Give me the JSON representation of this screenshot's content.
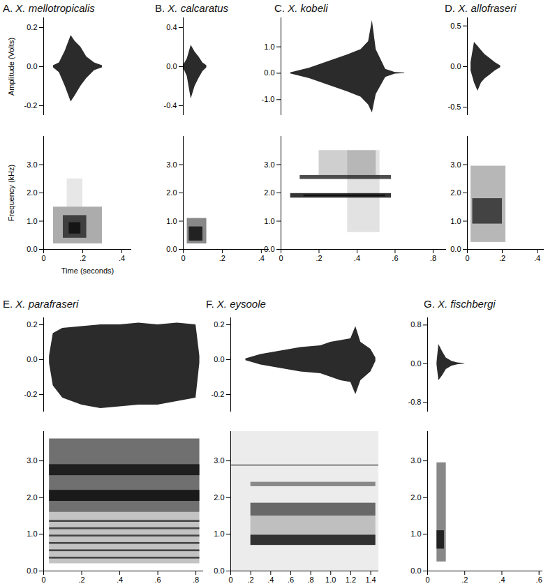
{
  "chart_data": [
    {
      "type": "area",
      "title": "A. X. mellotropicalis",
      "ylabel": "Amplitude (Volts)",
      "tick_labels": "y",
      "color": "#2b2b2b",
      "xlim": [
        0,
        0.45
      ],
      "ylim": [
        -0.25,
        0.25
      ],
      "yticks": [
        0.2,
        {
          "value": 0,
          "label": "0.0"
        },
        -0.2
      ],
      "x": [
        0.05,
        0.08,
        0.11,
        0.14,
        0.16,
        0.19,
        0.22,
        0.26,
        0.3
      ],
      "upper": [
        0.005,
        0.02,
        0.08,
        0.16,
        0.13,
        0.1,
        0.05,
        0.02,
        0.005
      ],
      "lower": [
        -0.005,
        -0.03,
        -0.1,
        -0.18,
        -0.15,
        -0.1,
        -0.06,
        -0.02,
        -0.005
      ]
    },
    {
      "type": "spectrogram",
      "ylabel": "Frequency (kHz)",
      "xlabel": "Time (seconds)",
      "color": "#111111",
      "xlim": [
        0,
        0.45
      ],
      "ylim": [
        0,
        4
      ],
      "xticks": [
        0,
        {
          "value": 0.2,
          "label": ".2"
        },
        {
          "value": 0.4,
          "label": ".4"
        }
      ],
      "yticks": [
        {
          "value": 0,
          "label": "0.0"
        },
        {
          "value": 1,
          "label": "1.0"
        },
        {
          "value": 2,
          "label": "2.0"
        },
        {
          "value": 3,
          "label": "3.0"
        }
      ],
      "cells": [
        {
          "start": 0.05,
          "end": 0.3,
          "low": 0.2,
          "high": 1.5,
          "level": 0.35
        },
        {
          "start": 0.1,
          "end": 0.22,
          "low": 0.4,
          "high": 1.2,
          "level": 0.7
        },
        {
          "start": 0.13,
          "end": 0.19,
          "low": 0.55,
          "high": 0.95,
          "level": 0.9
        },
        {
          "start": 0.12,
          "end": 0.2,
          "low": 1.5,
          "high": 2.5,
          "level": 0.1
        }
      ]
    },
    {
      "type": "area",
      "title": "B. X. calcaratus",
      "tick_labels": "y",
      "color": "#2b2b2b",
      "xlim": [
        0,
        0.44
      ],
      "ylim": [
        -0.5,
        0.5
      ],
      "yticks": [
        0.4,
        {
          "value": 0,
          "label": "0.0"
        },
        -0.4
      ],
      "x": [
        0,
        0.02,
        0.04,
        0.06,
        0.08,
        0.1,
        0.12
      ],
      "upper": [
        0.01,
        0.08,
        0.22,
        0.15,
        0.1,
        0.04,
        0.01
      ],
      "lower": [
        -0.01,
        -0.1,
        -0.33,
        -0.2,
        -0.12,
        -0.05,
        -0.01
      ]
    },
    {
      "type": "spectrogram",
      "color": "#111111",
      "xlim": [
        0,
        0.44
      ],
      "ylim": [
        0,
        4
      ],
      "xticks": [
        0,
        {
          "value": 0.2,
          "label": ".2"
        },
        {
          "value": 0.4,
          "label": ".4"
        }
      ],
      "yticks": [
        {
          "value": 0,
          "label": "0.0"
        },
        {
          "value": 1,
          "label": "1.0"
        },
        {
          "value": 2,
          "label": "2.0"
        },
        {
          "value": 3,
          "label": "3.0"
        }
      ],
      "cells": [
        {
          "start": 0.02,
          "end": 0.12,
          "low": 0.2,
          "high": 1.1,
          "level": 0.5
        },
        {
          "start": 0.03,
          "end": 0.1,
          "low": 0.3,
          "high": 0.8,
          "level": 0.85
        }
      ]
    },
    {
      "type": "area",
      "title": "C. X. kobeli",
      "tick_labels": "y",
      "color": "#2b2b2b",
      "xlim": [
        0,
        0.87
      ],
      "ylim": [
        -1.6,
        2.1
      ],
      "yticks": [
        {
          "value": 1,
          "label": "1.0"
        },
        {
          "value": 0,
          "label": "0.0"
        },
        {
          "value": -1,
          "label": "-1.0"
        }
      ],
      "x": [
        0.05,
        0.15,
        0.25,
        0.35,
        0.42,
        0.46,
        0.48,
        0.5,
        0.55,
        0.6,
        0.65
      ],
      "upper": [
        0.02,
        0.2,
        0.45,
        0.7,
        0.9,
        1.2,
        2.0,
        0.9,
        0.15,
        0.03,
        0.01
      ],
      "lower": [
        -0.02,
        -0.2,
        -0.45,
        -0.7,
        -0.9,
        -1.2,
        -1.5,
        -0.8,
        -0.15,
        -0.03,
        -0.01
      ]
    },
    {
      "type": "spectrogram",
      "color": "#111111",
      "xlim": [
        0,
        0.87
      ],
      "ylim": [
        0,
        4
      ],
      "xticks": [
        0,
        {
          "value": 0.2,
          "label": ".2"
        },
        {
          "value": 0.4,
          "label": ".4"
        },
        {
          "value": 0.6,
          "label": ".6"
        },
        {
          "value": 0.8,
          "label": ".8"
        }
      ],
      "yticks": [
        {
          "value": 0,
          "label": "0.0"
        },
        {
          "value": 1,
          "label": "1.0"
        },
        {
          "value": 2,
          "label": "2.0"
        },
        {
          "value": 3,
          "label": "3.0"
        }
      ],
      "cells": [
        {
          "start": 0.05,
          "end": 0.58,
          "low": 1.82,
          "high": 1.98,
          "level": 0.85
        },
        {
          "start": 0.12,
          "end": 0.55,
          "low": 1.87,
          "high": 1.93,
          "level": 1
        },
        {
          "start": 0.1,
          "end": 0.58,
          "low": 2.48,
          "high": 2.62,
          "level": 0.75
        },
        {
          "start": 0.2,
          "end": 0.5,
          "low": 2.62,
          "high": 3.5,
          "level": 0.2
        },
        {
          "start": 0.35,
          "end": 0.52,
          "low": 0.6,
          "high": 3.5,
          "level": 0.12
        }
      ]
    },
    {
      "type": "area",
      "title": "D. X. allofraseri",
      "tick_labels": "y",
      "color": "#2b2b2b",
      "xlim": [
        0,
        0.44
      ],
      "ylim": [
        -0.6,
        0.6
      ],
      "yticks": [
        0.5,
        {
          "value": 0,
          "label": "0.0"
        },
        -0.5
      ],
      "x": [
        0.02,
        0.04,
        0.06,
        0.08,
        0.1,
        0.13,
        0.16,
        0.19
      ],
      "upper": [
        0.05,
        0.3,
        0.25,
        0.2,
        0.15,
        0.1,
        0.05,
        0.01
      ],
      "lower": [
        -0.05,
        -0.2,
        -0.3,
        -0.2,
        -0.15,
        -0.1,
        -0.05,
        -0.01
      ]
    },
    {
      "type": "spectrogram",
      "color": "#111111",
      "xlim": [
        0,
        0.44
      ],
      "ylim": [
        0,
        4
      ],
      "xticks": [
        0,
        {
          "value": 0.2,
          "label": ".2"
        },
        {
          "value": 0.4,
          "label": ".4"
        }
      ],
      "yticks": [
        {
          "value": 0,
          "label": "0.0"
        },
        {
          "value": 1,
          "label": "1.0"
        },
        {
          "value": 2,
          "label": "2.0"
        },
        {
          "value": 3,
          "label": "3.0"
        }
      ],
      "cells": [
        {
          "start": 0.02,
          "end": 0.22,
          "low": 0.25,
          "high": 2.95,
          "level": 0.3
        },
        {
          "start": 0.03,
          "end": 0.2,
          "low": 0.9,
          "high": 1.8,
          "level": 0.7
        }
      ]
    },
    {
      "type": "area",
      "title": "E. X. parafraseri",
      "tick_labels": "y",
      "color": "#2b2b2b",
      "xlim": [
        0,
        0.84
      ],
      "ylim": [
        -0.3,
        0.24
      ],
      "yticks": [
        0.2,
        {
          "value": 0,
          "label": "0.0"
        },
        -0.2
      ],
      "x": [
        0.03,
        0.05,
        0.1,
        0.2,
        0.3,
        0.4,
        0.5,
        0.6,
        0.7,
        0.8,
        0.82
      ],
      "upper": [
        0.02,
        0.15,
        0.18,
        0.19,
        0.2,
        0.2,
        0.21,
        0.2,
        0.21,
        0.2,
        0.02
      ],
      "lower": [
        -0.02,
        -0.15,
        -0.22,
        -0.26,
        -0.28,
        -0.27,
        -0.26,
        -0.26,
        -0.24,
        -0.22,
        -0.02
      ]
    },
    {
      "type": "spectrogram",
      "color": "#111111",
      "xlim": [
        0,
        0.84
      ],
      "ylim": [
        0,
        3.8
      ],
      "xticks": [
        0,
        {
          "value": 0.2,
          "label": ".2"
        },
        {
          "value": 0.4,
          "label": ".4"
        },
        {
          "value": 0.6,
          "label": ".6"
        },
        {
          "value": 0.8,
          "label": ".8"
        }
      ],
      "yticks": [
        {
          "value": 0,
          "label": "0.0"
        },
        {
          "value": 1,
          "label": "1.0"
        },
        {
          "value": 2,
          "label": "2.0"
        },
        {
          "value": 3,
          "label": "3.0"
        }
      ],
      "cells": [
        {
          "start": 0.03,
          "end": 0.82,
          "low": 0.2,
          "high": 1.6,
          "level": 0.25
        },
        {
          "start": 0.03,
          "end": 0.82,
          "low": 0.33,
          "high": 0.38,
          "level": 0.7
        },
        {
          "start": 0.03,
          "end": 0.82,
          "low": 0.53,
          "high": 0.58,
          "level": 0.7
        },
        {
          "start": 0.03,
          "end": 0.82,
          "low": 0.73,
          "high": 0.78,
          "level": 0.7
        },
        {
          "start": 0.03,
          "end": 0.82,
          "low": 0.93,
          "high": 0.98,
          "level": 0.7
        },
        {
          "start": 0.03,
          "end": 0.82,
          "low": 1.13,
          "high": 1.18,
          "level": 0.7
        },
        {
          "start": 0.03,
          "end": 0.82,
          "low": 1.33,
          "high": 1.38,
          "level": 0.7
        },
        {
          "start": 0.03,
          "end": 0.82,
          "low": 1.6,
          "high": 3.6,
          "level": 0.6
        },
        {
          "start": 0.03,
          "end": 0.82,
          "low": 1.9,
          "high": 2.2,
          "level": 0.9
        },
        {
          "start": 0.03,
          "end": 0.82,
          "low": 2.6,
          "high": 2.9,
          "level": 0.85
        }
      ]
    },
    {
      "type": "area",
      "title": "F. X. eysoole",
      "tick_labels": "y",
      "color": "#2b2b2b",
      "xlim": [
        0,
        1.48
      ],
      "ylim": [
        -0.3,
        0.24
      ],
      "yticks": [
        0.2,
        {
          "value": 0,
          "label": "0.0"
        },
        -0.2
      ],
      "x": [
        0.15,
        0.3,
        0.5,
        0.7,
        0.9,
        1.0,
        1.1,
        1.2,
        1.25,
        1.3,
        1.4,
        1.45
      ],
      "upper": [
        0.005,
        0.03,
        0.05,
        0.07,
        0.08,
        0.1,
        0.11,
        0.12,
        0.19,
        0.1,
        0.06,
        0.01
      ],
      "lower": [
        -0.005,
        -0.03,
        -0.05,
        -0.07,
        -0.08,
        -0.1,
        -0.12,
        -0.13,
        -0.2,
        -0.12,
        -0.07,
        -0.01
      ]
    },
    {
      "type": "spectrogram",
      "color": "#111111",
      "xlim": [
        0,
        1.48
      ],
      "ylim": [
        0,
        3.8
      ],
      "xticks": [
        0,
        {
          "value": 0.2,
          "label": ".2"
        },
        {
          "value": 0.4,
          "label": ".4"
        },
        {
          "value": 0.6,
          "label": ".6"
        },
        {
          "value": 0.8,
          "label": ".8"
        },
        {
          "value": 1,
          "label": "1.0"
        },
        1.2,
        1.4
      ],
      "yticks": [
        {
          "value": 0,
          "label": "0.0"
        },
        {
          "value": 1,
          "label": "1.0"
        },
        {
          "value": 2,
          "label": "2.0"
        },
        {
          "value": 3,
          "label": "3.0"
        }
      ],
      "cells": [
        {
          "start": 0,
          "end": 1.48,
          "low": 0,
          "high": 3.8,
          "level": 0.08
        },
        {
          "start": 0.2,
          "end": 1.45,
          "low": 0.7,
          "high": 0.98,
          "level": 0.85
        },
        {
          "start": 0.2,
          "end": 1.45,
          "low": 0.98,
          "high": 1.5,
          "level": 0.2
        },
        {
          "start": 0.2,
          "end": 1.45,
          "low": 1.5,
          "high": 1.85,
          "level": 0.6
        },
        {
          "start": 0.2,
          "end": 1.45,
          "low": 2.3,
          "high": 2.42,
          "level": 0.45
        },
        {
          "start": 0,
          "end": 1.48,
          "low": 2.85,
          "high": 2.9,
          "level": 0.35
        }
      ]
    },
    {
      "type": "area",
      "title": "G. X. fischbergi",
      "tick_labels": "y",
      "color": "#2b2b2b",
      "xlim": [
        0,
        0.62
      ],
      "ylim": [
        -1,
        0.95
      ],
      "yticks": [
        0.8,
        {
          "value": 0,
          "label": "0.0"
        },
        -0.8
      ],
      "x": [
        0.05,
        0.06,
        0.08,
        0.1,
        0.13,
        0.16,
        0.2
      ],
      "upper": [
        0.02,
        0.4,
        0.25,
        0.12,
        0.05,
        0.02,
        0.005
      ],
      "lower": [
        -0.02,
        -0.35,
        -0.25,
        -0.12,
        -0.05,
        -0.02,
        -0.005
      ]
    },
    {
      "type": "spectrogram",
      "color": "#111111",
      "xlim": [
        0,
        0.62
      ],
      "ylim": [
        0,
        3.8
      ],
      "xticks": [
        0,
        {
          "value": 0.2,
          "label": ".2"
        },
        {
          "value": 0.4,
          "label": ".4"
        },
        {
          "value": 0.6,
          "label": ".6"
        }
      ],
      "yticks": [
        {
          "value": 0,
          "label": "0.0"
        },
        {
          "value": 1,
          "label": "1.0"
        },
        {
          "value": 2,
          "label": "2.0"
        },
        {
          "value": 3,
          "label": "3.0"
        }
      ],
      "cells": [
        {
          "start": 0.05,
          "end": 0.1,
          "low": 0.25,
          "high": 2.95,
          "level": 0.5
        },
        {
          "start": 0.05,
          "end": 0.09,
          "low": 0.6,
          "high": 1.1,
          "level": 0.85
        }
      ]
    }
  ]
}
